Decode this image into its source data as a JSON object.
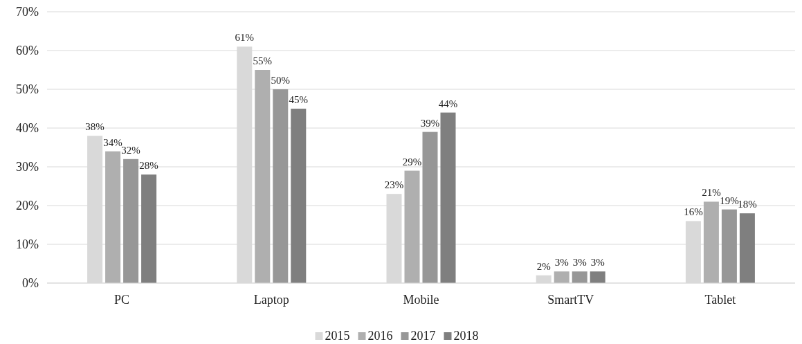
{
  "chart_data": {
    "type": "bar",
    "categories": [
      "PC",
      "Laptop",
      "Mobile",
      "SmartTV",
      "Tablet"
    ],
    "series": [
      {
        "name": "2015",
        "color": "#d9d9d9",
        "values": [
          38,
          61,
          23,
          2,
          16
        ],
        "value_labels": [
          "38%",
          "61%",
          "23%",
          "2%",
          "16%"
        ]
      },
      {
        "name": "2016",
        "color": "#afafaf",
        "values": [
          34,
          55,
          29,
          3,
          21
        ],
        "value_labels": [
          "34%",
          "55%",
          "29%",
          "3%",
          "21%"
        ]
      },
      {
        "name": "2017",
        "color": "#979797",
        "values": [
          32,
          50,
          39,
          3,
          19
        ],
        "value_labels": [
          "32%",
          "50%",
          "39%",
          "3%",
          "19%"
        ]
      },
      {
        "name": "2018",
        "color": "#7f7f7f",
        "values": [
          28,
          45,
          44,
          3,
          18
        ],
        "value_labels": [
          "28%",
          "45%",
          "44%",
          "3%",
          "18%"
        ]
      }
    ],
    "ylim": [
      0,
      70
    ],
    "yticks": [
      {
        "value": 0,
        "label": "0%"
      },
      {
        "value": 10,
        "label": "10%"
      },
      {
        "value": 20,
        "label": "20%"
      },
      {
        "value": 30,
        "label": "30%"
      },
      {
        "value": 40,
        "label": "40%"
      },
      {
        "value": 50,
        "label": "50%"
      },
      {
        "value": 60,
        "label": "60%"
      },
      {
        "value": 70,
        "label": "70%"
      }
    ],
    "grid": "y",
    "legend": "bottom"
  }
}
